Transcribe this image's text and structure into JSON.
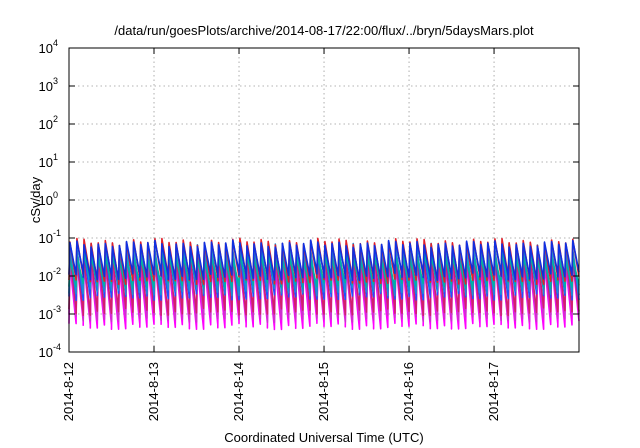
{
  "chart_data": {
    "type": "line",
    "title": "/data/run/goesPlots/archive/2014-08-17/22:00/flux/../bryn/5daysMars.plot",
    "xlabel": "Coordinated Universal Time (UTC)",
    "ylabel": "cSv/day",
    "y_scale": "log",
    "ylim": [
      0.0001,
      10000
    ],
    "y_ticks": [
      {
        "base": "10",
        "exp": "-4",
        "value": 0.0001
      },
      {
        "base": "10",
        "exp": "-3",
        "value": 0.001
      },
      {
        "base": "10",
        "exp": "-2",
        "value": 0.01
      },
      {
        "base": "10",
        "exp": "-1",
        "value": 0.1
      },
      {
        "base": "10",
        "exp": "0",
        "value": 1
      },
      {
        "base": "10",
        "exp": "1",
        "value": 10
      },
      {
        "base": "10",
        "exp": "2",
        "value": 100
      },
      {
        "base": "10",
        "exp": "3",
        "value": 1000
      },
      {
        "base": "10",
        "exp": "4",
        "value": 10000
      }
    ],
    "xlim": [
      "2014-08-12",
      "2014-08-17T23:59"
    ],
    "x_ticks": [
      "2014-8-12",
      "2014-8-13",
      "2014-8-14",
      "2014-8-15",
      "2014-8-16",
      "2014-8-17"
    ],
    "x_tick_dates": [
      "2014-08-12",
      "2014-08-13",
      "2014-08-14",
      "2014-08-15",
      "2014-08-16",
      "2014-08-17"
    ],
    "grid": true,
    "sawtooth_cycles_per_day": 12,
    "series": [
      {
        "color": "#ff00ff",
        "peak": 0.02,
        "trough": 0.0005
      },
      {
        "color": "#cc33cc",
        "peak": 0.025,
        "trough": 0.0008
      },
      {
        "color": "#d21e6e",
        "peak": 0.035,
        "trough": 0.0012
      },
      {
        "color": "#2050ff",
        "peak": 0.05,
        "trough": 0.003
      },
      {
        "color": "#1a8fd6",
        "peak": 0.06,
        "trough": 0.004
      },
      {
        "color": "#00b3a0",
        "peak": 0.03,
        "trough": 0.006
      },
      {
        "color": "#e0202a",
        "peak": 0.08,
        "trough": 0.008
      },
      {
        "color": "#1030e0",
        "peak": 0.07,
        "trough": 0.01
      }
    ]
  }
}
